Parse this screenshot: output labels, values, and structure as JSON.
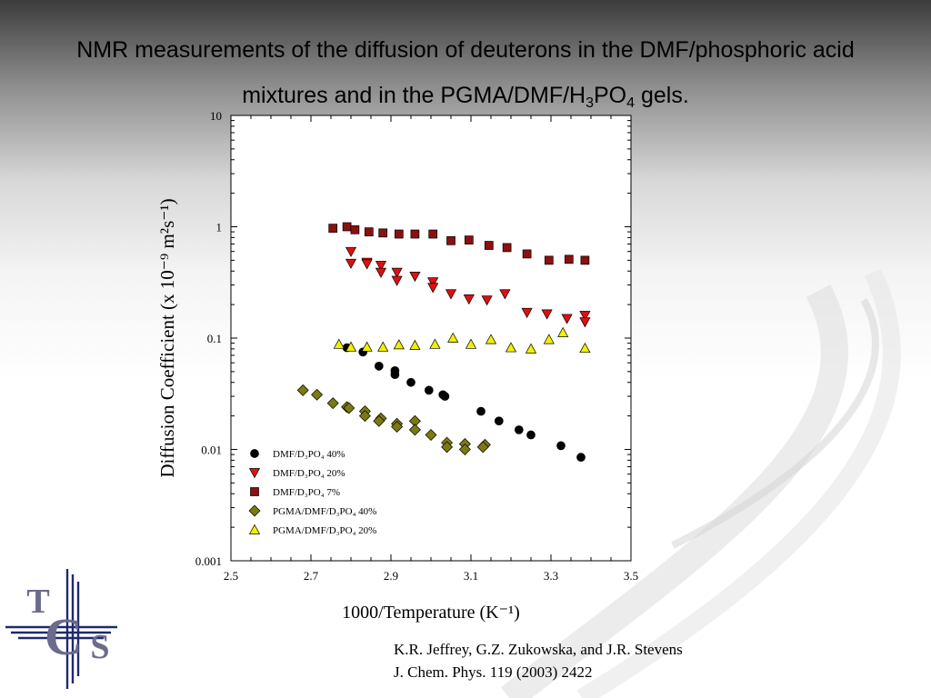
{
  "slide": {
    "title_line1": "NMR measurements of the diffusion of deuterons in the DMF/phosphoric acid",
    "title_line2_pre": "mixtures and in the PGMA/DMF/H",
    "title_sub1": "3",
    "title_mid": "PO",
    "title_sub2": "4",
    "title_post": " gels.",
    "reference_line1": "K.R. Jeffrey, G.Z. Zukowska, and J.R. Stevens",
    "reference_line2": "J. Chem. Phys. 119 (2003) 2422",
    "logo_letters": [
      "T",
      "C",
      "S"
    ]
  },
  "chart_data": {
    "type": "scatter",
    "title": "",
    "xlabel": "1000/Temperature (K⁻¹)",
    "ylabel": "Diffusion Coefficient (x 10⁻⁹ m²s⁻¹)",
    "xlim": [
      2.5,
      3.5
    ],
    "ylim": [
      0.001,
      10
    ],
    "yscale": "log",
    "xticks": [
      2.5,
      2.7,
      2.9,
      3.1,
      3.3,
      3.5
    ],
    "xtick_labels": [
      "2.5",
      "2.7",
      "2.9",
      "3.1",
      "3.3",
      "3.5"
    ],
    "yticks": [
      0.001,
      0.01,
      0.1,
      1,
      10
    ],
    "ytick_labels": [
      "0.001",
      "0.01",
      "0.1",
      "1",
      "10"
    ],
    "grid": false,
    "legend_position": "lower-left",
    "series": [
      {
        "name": "DMF/D₃PO₄ 40%",
        "marker": "circle",
        "color": "#000000",
        "points": [
          [
            2.79,
            0.082
          ],
          [
            2.83,
            0.075
          ],
          [
            2.87,
            0.056
          ],
          [
            2.91,
            0.051
          ],
          [
            2.91,
            0.047
          ],
          [
            2.95,
            0.04
          ],
          [
            2.995,
            0.034
          ],
          [
            3.03,
            0.031
          ],
          [
            3.035,
            0.03
          ],
          [
            3.125,
            0.022
          ],
          [
            3.17,
            0.018
          ],
          [
            3.22,
            0.015
          ],
          [
            3.25,
            0.0135
          ],
          [
            3.325,
            0.0108
          ],
          [
            3.375,
            0.0085
          ]
        ]
      },
      {
        "name": "DMF/D₃PO₄ 20%",
        "marker": "triangle-down",
        "color": "#e01010",
        "points": [
          [
            2.8,
            0.6
          ],
          [
            2.8,
            0.47
          ],
          [
            2.84,
            0.48
          ],
          [
            2.84,
            0.465
          ],
          [
            2.875,
            0.45
          ],
          [
            2.875,
            0.39
          ],
          [
            2.915,
            0.39
          ],
          [
            2.915,
            0.33
          ],
          [
            2.96,
            0.36
          ],
          [
            3.005,
            0.32
          ],
          [
            3.005,
            0.285
          ],
          [
            3.05,
            0.25
          ],
          [
            3.095,
            0.225
          ],
          [
            3.14,
            0.22
          ],
          [
            3.185,
            0.25
          ],
          [
            3.24,
            0.17
          ],
          [
            3.29,
            0.165
          ],
          [
            3.34,
            0.15
          ],
          [
            3.385,
            0.16
          ],
          [
            3.385,
            0.14
          ]
        ]
      },
      {
        "name": "DMF/D₃PO₄ 7%",
        "marker": "square",
        "color": "#8b1010",
        "points": [
          [
            2.755,
            0.97
          ],
          [
            2.79,
            1.0
          ],
          [
            2.81,
            0.94
          ],
          [
            2.845,
            0.9
          ],
          [
            2.88,
            0.88
          ],
          [
            2.92,
            0.86
          ],
          [
            2.96,
            0.86
          ],
          [
            3.005,
            0.86
          ],
          [
            3.05,
            0.75
          ],
          [
            3.095,
            0.76
          ],
          [
            3.145,
            0.68
          ],
          [
            3.19,
            0.65
          ],
          [
            3.24,
            0.57
          ],
          [
            3.295,
            0.5
          ],
          [
            3.345,
            0.51
          ],
          [
            3.385,
            0.5
          ]
        ]
      },
      {
        "name": "PGMA/DMF/D₃PO₄ 40%",
        "marker": "diamond",
        "color": "#7a7a10",
        "points": [
          [
            2.68,
            0.034
          ],
          [
            2.715,
            0.031
          ],
          [
            2.755,
            0.026
          ],
          [
            2.79,
            0.024
          ],
          [
            2.795,
            0.0235
          ],
          [
            2.835,
            0.022
          ],
          [
            2.835,
            0.02
          ],
          [
            2.875,
            0.019
          ],
          [
            2.87,
            0.018
          ],
          [
            2.915,
            0.017
          ],
          [
            2.915,
            0.016
          ],
          [
            2.96,
            0.018
          ],
          [
            2.96,
            0.015
          ],
          [
            3.0,
            0.0135
          ],
          [
            3.04,
            0.0115
          ],
          [
            3.04,
            0.0105
          ],
          [
            3.085,
            0.0112
          ],
          [
            3.085,
            0.01
          ],
          [
            3.135,
            0.011
          ],
          [
            3.13,
            0.0105
          ]
        ]
      },
      {
        "name": "PGMA/DMF/D₃PO₄ 20%",
        "marker": "triangle-up",
        "color": "#f0f000",
        "points": [
          [
            2.77,
            0.088
          ],
          [
            2.8,
            0.083
          ],
          [
            2.84,
            0.083
          ],
          [
            2.88,
            0.083
          ],
          [
            2.92,
            0.087
          ],
          [
            2.96,
            0.086
          ],
          [
            3.01,
            0.088
          ],
          [
            3.055,
            0.1
          ],
          [
            3.1,
            0.088
          ],
          [
            3.15,
            0.097
          ],
          [
            3.2,
            0.082
          ],
          [
            3.25,
            0.08
          ],
          [
            3.295,
            0.097
          ],
          [
            3.33,
            0.112
          ],
          [
            3.385,
            0.081
          ]
        ]
      }
    ]
  }
}
